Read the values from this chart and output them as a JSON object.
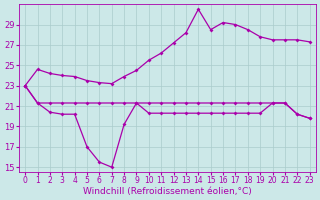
{
  "xlabel": "Windchill (Refroidissement éolien,°C)",
  "bg_color": "#cce8e8",
  "line_color": "#aa00aa",
  "grid_color": "#aacccc",
  "x_values": [
    0,
    1,
    2,
    3,
    4,
    5,
    6,
    7,
    8,
    9,
    10,
    11,
    12,
    13,
    14,
    15,
    16,
    17,
    18,
    19,
    20,
    21,
    22,
    23
  ],
  "temp": [
    23.0,
    24.6,
    24.2,
    24.0,
    23.9,
    23.5,
    23.3,
    23.2,
    23.9,
    24.5,
    25.5,
    26.2,
    27.2,
    28.2,
    30.5,
    28.5,
    29.2,
    29.0,
    28.5,
    27.8,
    27.5,
    27.5,
    27.5,
    27.3
  ],
  "flat": [
    23.0,
    21.3,
    21.3,
    21.3,
    21.3,
    21.3,
    21.3,
    21.3,
    21.3,
    21.3,
    21.3,
    21.3,
    21.3,
    21.3,
    21.3,
    21.3,
    21.3,
    21.3,
    21.3,
    21.3,
    21.3,
    21.3,
    20.2,
    19.8
  ],
  "dip": [
    23.0,
    21.3,
    20.4,
    20.2,
    20.2,
    17.0,
    15.5,
    15.0,
    19.2,
    21.3,
    20.3,
    20.3,
    20.3,
    20.3,
    20.3,
    20.3,
    20.3,
    20.3,
    20.3,
    20.3,
    21.3,
    21.3,
    20.2,
    19.8
  ],
  "ylim": [
    14.5,
    31.0
  ],
  "yticks": [
    15,
    17,
    19,
    21,
    23,
    25,
    27,
    29
  ],
  "xlim": [
    -0.5,
    23.5
  ],
  "tick_fontsize": 5.5,
  "axis_fontsize": 6.5
}
